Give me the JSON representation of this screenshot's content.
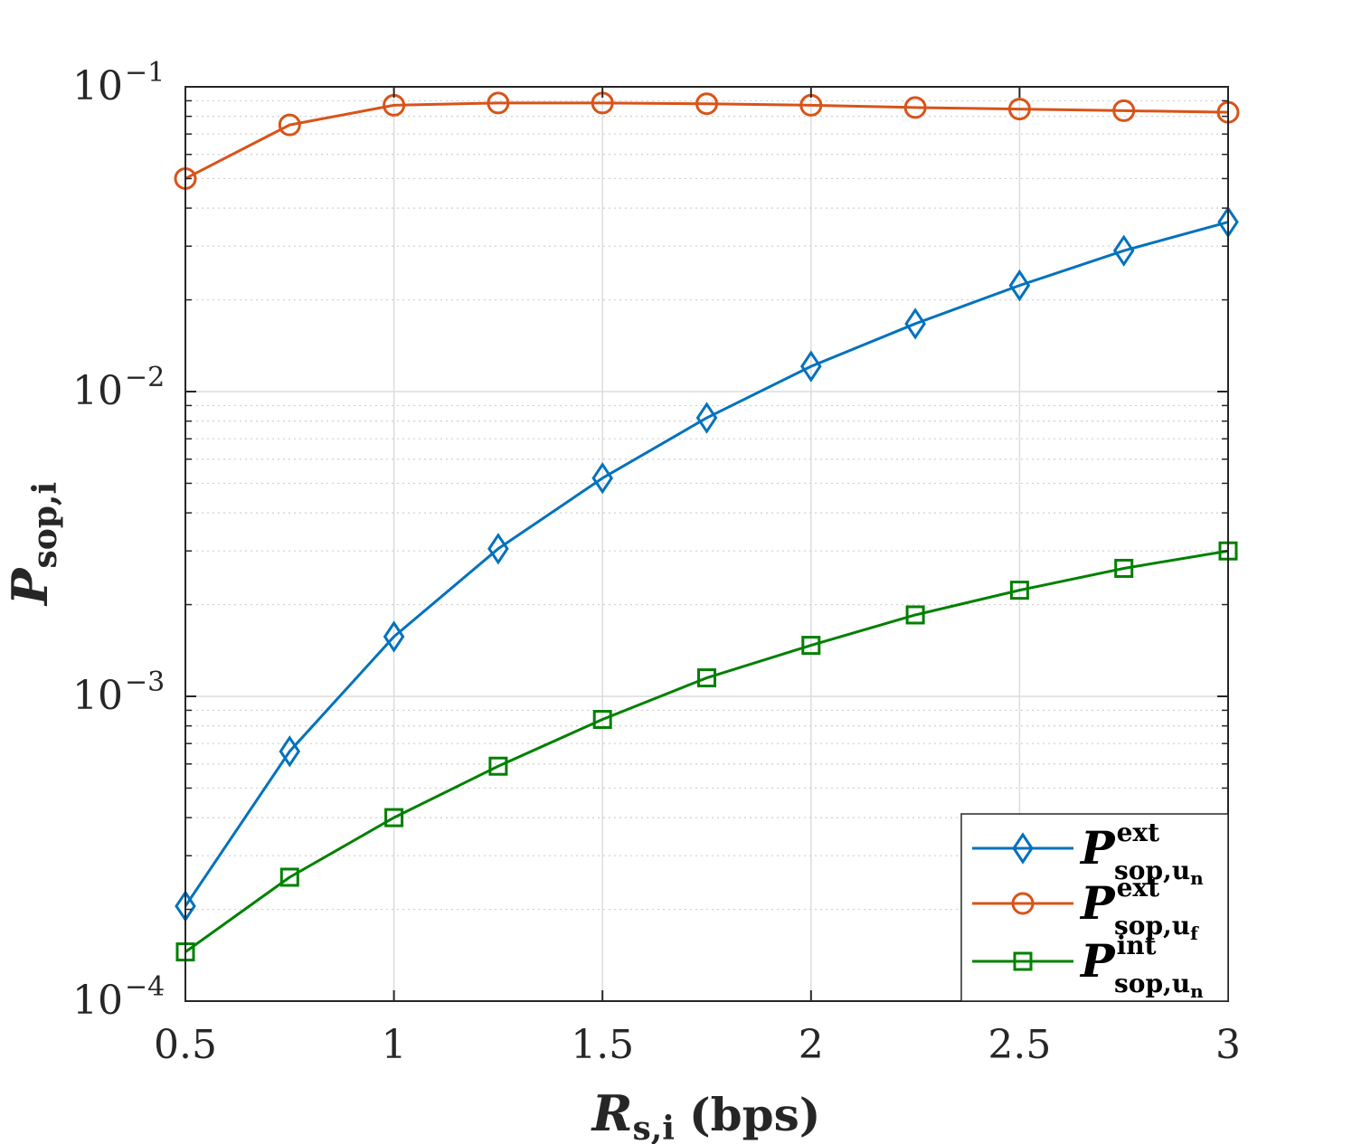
{
  "chart_data": {
    "type": "line",
    "x": [
      0.5,
      0.75,
      1.0,
      1.25,
      1.5,
      1.75,
      2.0,
      2.25,
      2.5,
      2.75,
      3.0
    ],
    "series": [
      {
        "name": "P_sop,un^ext",
        "legend": {
          "main": "P",
          "sup": "ext",
          "sub": "sop,u",
          "subsub": "n"
        },
        "color": "#0072bd",
        "marker": "diamond",
        "values": [
          0.000205,
          0.00066,
          0.00157,
          0.00305,
          0.0052,
          0.0082,
          0.0121,
          0.0167,
          0.0223,
          0.029,
          0.036
        ]
      },
      {
        "name": "P_sop,uf^ext",
        "legend": {
          "main": "P",
          "sup": "ext",
          "sub": "sop,u",
          "subsub": "f"
        },
        "color": "#d95319",
        "marker": "circle",
        "values": [
          0.05,
          0.075,
          0.087,
          0.0885,
          0.0885,
          0.088,
          0.087,
          0.0855,
          0.0845,
          0.0835,
          0.0825
        ]
      },
      {
        "name": "P_sop,un^int",
        "legend": {
          "main": "P",
          "sup": "int",
          "sub": "sop,u",
          "subsub": "n"
        },
        "color": "#008000",
        "marker": "square",
        "values": [
          0.000145,
          0.000255,
          0.0004,
          0.00059,
          0.00084,
          0.00115,
          0.00147,
          0.00185,
          0.00223,
          0.00263,
          0.003
        ]
      }
    ],
    "xlim": [
      0.5,
      3
    ],
    "ylim": [
      0.0001,
      0.1
    ],
    "yscale": "log",
    "xticks": [
      "0.5",
      "1",
      "1.5",
      "2",
      "2.5",
      "3"
    ],
    "yticks": [
      {
        "base": "10",
        "exp": "−1"
      },
      {
        "base": "10",
        "exp": "−2"
      },
      {
        "base": "10",
        "exp": "−3"
      },
      {
        "base": "10",
        "exp": "−4"
      }
    ],
    "xlabel": {
      "main": "R",
      "sub": "s,i",
      "unit": "(bps)"
    },
    "ylabel": {
      "main": "P",
      "sub": "sop,i"
    },
    "grid": true,
    "legend_position": "bottom-right"
  }
}
